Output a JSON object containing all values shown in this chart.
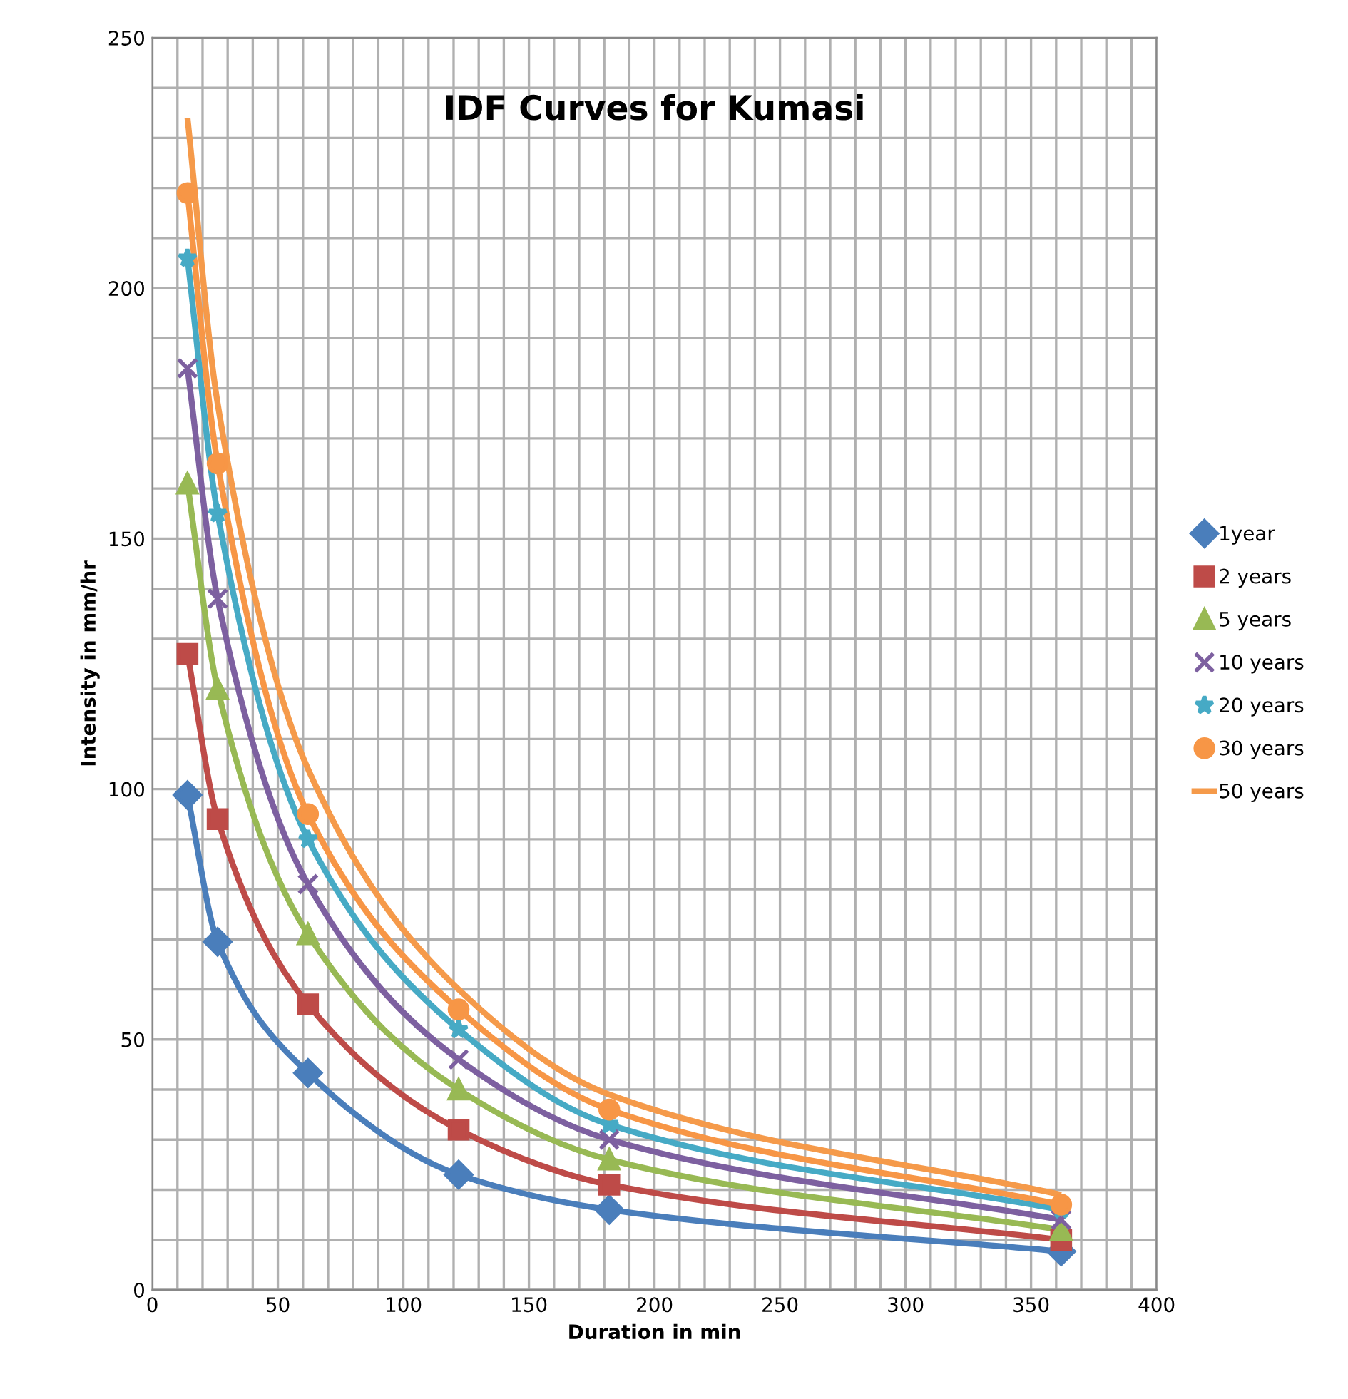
{
  "chart_data": {
    "type": "line",
    "title": "IDF Curves for Kumasi",
    "xlabel": "Duration in min",
    "ylabel": "Intensity in mm/hr",
    "x": [
      14,
      26,
      62,
      122,
      182,
      362
    ],
    "series": [
      {
        "name": "1year",
        "color": "#4a7ebb",
        "marker": "diamond",
        "values": [
          98.8,
          69.5,
          43.3,
          23,
          16,
          7.7
        ]
      },
      {
        "name": "2 years",
        "color": "#be4b48",
        "marker": "square",
        "values": [
          127,
          94,
          57,
          32,
          21,
          10
        ]
      },
      {
        "name": "5 years",
        "color": "#98b954",
        "marker": "triangle",
        "values": [
          161,
          120,
          71,
          40,
          26,
          12
        ]
      },
      {
        "name": "10 years",
        "color": "#7d60a0",
        "marker": "cross",
        "values": [
          184,
          138,
          81,
          46,
          30,
          14
        ]
      },
      {
        "name": "20 years",
        "color": "#46aac5",
        "marker": "star",
        "values": [
          206,
          155,
          90,
          52,
          33,
          16
        ]
      },
      {
        "name": "30 years",
        "color": "#f79646",
        "marker": "circle",
        "values": [
          219,
          165,
          95,
          56,
          36,
          17
        ]
      },
      {
        "name": "50 years",
        "color": "#f59a4a",
        "marker": "none",
        "values": [
          234,
          177,
          104,
          60,
          39,
          19
        ]
      }
    ],
    "xlim": [
      0,
      400
    ],
    "ylim": [
      0,
      250
    ],
    "xticks": [
      0,
      {
        "value": 10,
        "label": null
      },
      {
        "value": 20,
        "label": null
      },
      {
        "value": 30,
        "label": null
      },
      {
        "value": 40,
        "label": null
      },
      50,
      {
        "value": 60,
        "label": null
      },
      {
        "value": 70,
        "label": null
      },
      {
        "value": 80,
        "label": null
      },
      {
        "value": 90,
        "label": null
      },
      100,
      {
        "value": 110,
        "label": null
      },
      {
        "value": 120,
        "label": null
      },
      {
        "value": 130,
        "label": null
      },
      {
        "value": 140,
        "label": null
      },
      150,
      {
        "value": 160,
        "label": null
      },
      {
        "value": 170,
        "label": null
      },
      {
        "value": 180,
        "label": null
      },
      {
        "value": 190,
        "label": null
      },
      200,
      {
        "value": 210,
        "label": null
      },
      {
        "value": 220,
        "label": null
      },
      {
        "value": 230,
        "label": null
      },
      {
        "value": 240,
        "label": null
      },
      250,
      {
        "value": 260,
        "label": null
      },
      {
        "value": 270,
        "label": null
      },
      {
        "value": 280,
        "label": null
      },
      {
        "value": 290,
        "label": null
      },
      300,
      {
        "value": 310,
        "label": null
      },
      {
        "value": 320,
        "label": null
      },
      {
        "value": 330,
        "label": null
      },
      {
        "value": 340,
        "label": null
      },
      350,
      {
        "value": 360,
        "label": null
      },
      {
        "value": 370,
        "label": null
      },
      {
        "value": 380,
        "label": null
      },
      {
        "value": 390,
        "label": null
      },
      400
    ],
    "yticks": [
      0,
      {
        "value": 10,
        "label": null
      },
      {
        "value": 20,
        "label": null
      },
      {
        "value": 30,
        "label": null
      },
      {
        "value": 40,
        "label": null
      },
      50,
      {
        "value": 60,
        "label": null
      },
      {
        "value": 70,
        "label": null
      },
      {
        "value": 80,
        "label": null
      },
      {
        "value": 90,
        "label": null
      },
      100,
      {
        "value": 110,
        "label": null
      },
      {
        "value": 120,
        "label": null
      },
      {
        "value": 130,
        "label": null
      },
      {
        "value": 140,
        "label": null
      },
      150,
      {
        "value": 160,
        "label": null
      },
      {
        "value": 170,
        "label": null
      },
      {
        "value": 180,
        "label": null
      },
      {
        "value": 190,
        "label": null
      },
      200,
      {
        "value": 210,
        "label": null
      },
      {
        "value": 220,
        "label": null
      },
      {
        "value": 230,
        "label": null
      },
      {
        "value": 240,
        "label": null
      },
      250
    ],
    "grid": true,
    "legend": "right"
  }
}
